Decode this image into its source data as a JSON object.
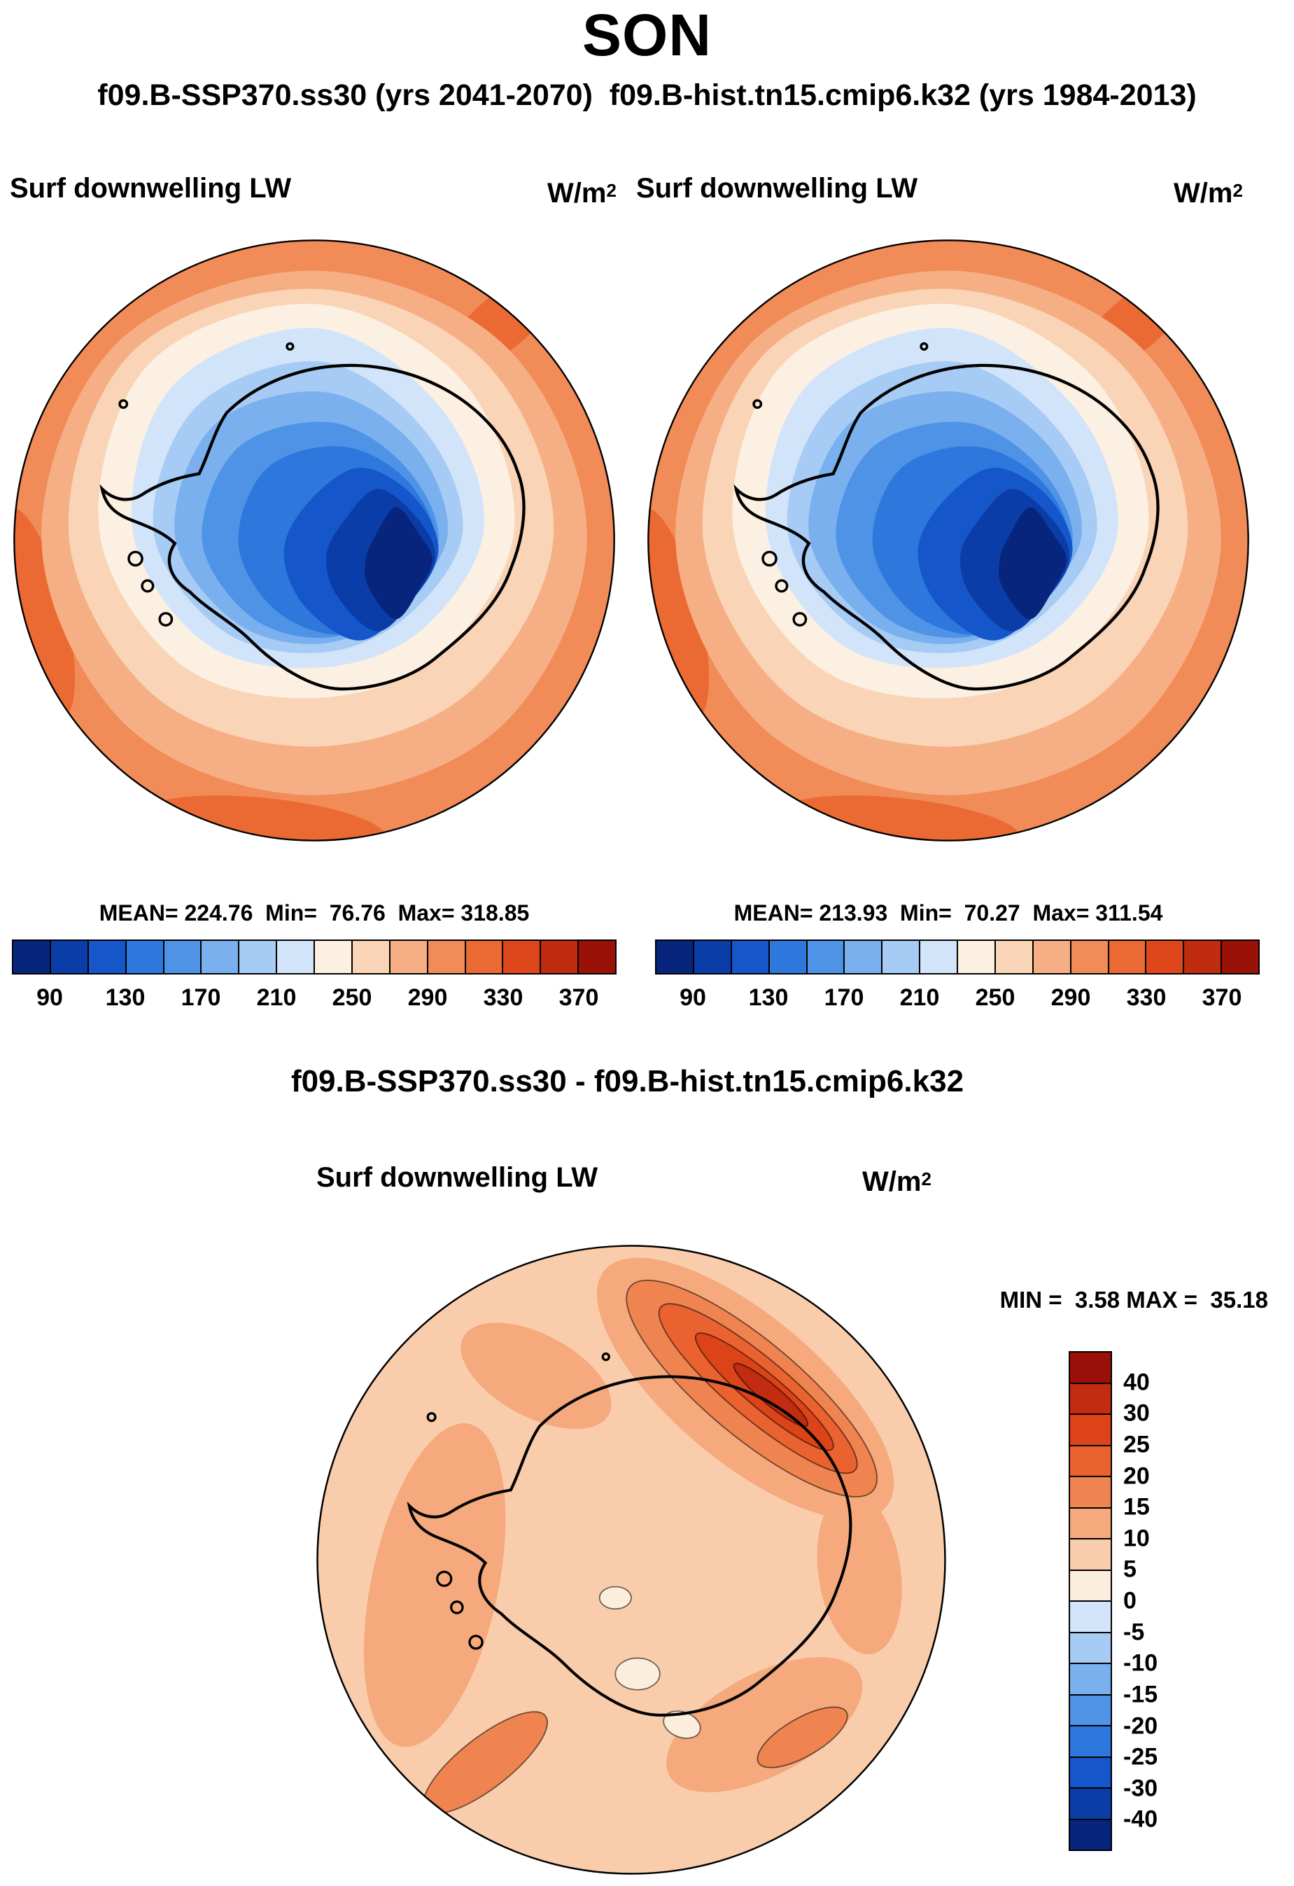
{
  "figure": {
    "season_title": "SON",
    "subtitle": "f09.B-SSP370.ss30 (yrs 2041-2070)  f09.B-hist.tn15.cmip6.k32 (yrs 1984-2013)",
    "diff_title": "f09.B-SSP370.ss30 - f09.B-hist.tn15.cmip6.k32",
    "field_label": "Surf downwelling LW",
    "units_base": "W/m",
    "units_exp": "2"
  },
  "panels": {
    "left": {
      "stats_text": "MEAN= 224.76  Min=  76.76  Max= 318.85"
    },
    "right": {
      "stats_text": "MEAN= 213.93  Min=  70.27  Max= 311.54"
    },
    "diff": {
      "minmax_text": "MIN =  3.58 MAX =  35.18"
    }
  },
  "chart_data": [
    {
      "type": "heatmap",
      "subtype": "filled-contour-map",
      "projection": "south polar stereographic",
      "panel": "top-left",
      "variable": "Surf downwelling LW",
      "units": "W/m2",
      "dataset": "f09.B-SSP370.ss30",
      "years": "yrs 2041-2070",
      "stats": {
        "mean": 224.76,
        "min": 76.76,
        "max": 318.85
      },
      "contour_levels": [
        90,
        110,
        130,
        150,
        170,
        190,
        210,
        230,
        250,
        270,
        290,
        310,
        330,
        350,
        370
      ],
      "colorbar_ticks": [
        90,
        130,
        170,
        210,
        250,
        290,
        330,
        370
      ],
      "colorbar_range": [
        70,
        390
      ],
      "legend_position": "bottom",
      "palette": [
        "#08257D",
        "#0B3DA8",
        "#1557CB",
        "#2E77DC",
        "#4E93E6",
        "#7AB0EE",
        "#A6CBF4",
        "#D2E4F9",
        "#FCF0E2",
        "#FAD4B6",
        "#F6AF85",
        "#F18B58",
        "#EB6A33",
        "#DE471B",
        "#C02C0F",
        "#991107"
      ],
      "pattern_summary": "High values (~290-310 W/m2) over the surrounding Southern Ocean decreasing inward to a minimum (70-90 W/m2) over the interior East Antarctic plateau; Antarctic coastline overlaid in black"
    },
    {
      "type": "heatmap",
      "subtype": "filled-contour-map",
      "projection": "south polar stereographic",
      "panel": "top-right",
      "variable": "Surf downwelling LW",
      "units": "W/m2",
      "dataset": "f09.B-hist.tn15.cmip6.k32",
      "years": "yrs 1984-2013",
      "stats": {
        "mean": 213.93,
        "min": 70.27,
        "max": 311.54
      },
      "contour_levels": [
        90,
        110,
        130,
        150,
        170,
        190,
        210,
        230,
        250,
        270,
        290,
        310,
        330,
        350,
        370
      ],
      "colorbar_ticks": [
        90,
        130,
        170,
        210,
        250,
        290,
        330,
        370
      ],
      "colorbar_range": [
        70,
        390
      ],
      "legend_position": "bottom",
      "palette": [
        "#08257D",
        "#0B3DA8",
        "#1557CB",
        "#2E77DC",
        "#4E93E6",
        "#7AB0EE",
        "#A6CBF4",
        "#D2E4F9",
        "#FCF0E2",
        "#FAD4B6",
        "#F6AF85",
        "#F18B58",
        "#EB6A33",
        "#DE471B",
        "#C02C0F",
        "#991107"
      ],
      "pattern_summary": "Same spatial pattern as the scenario panel but slightly lower values overall; minimum over the East Antarctic plateau, maximum over the open ocean"
    },
    {
      "type": "heatmap",
      "subtype": "filled-contour-difference-map",
      "projection": "south polar stereographic",
      "panel": "bottom-difference",
      "title": "f09.B-SSP370.ss30 - f09.B-hist.tn15.cmip6.k32",
      "variable": "Surf downwelling LW",
      "units": "W/m2",
      "stats": {
        "min": 3.58,
        "max": 35.18
      },
      "contour_levels": [
        -40,
        -30,
        -25,
        -20,
        -15,
        -10,
        -5,
        0,
        5,
        10,
        15,
        20,
        25,
        30,
        40
      ],
      "legend_position": "right",
      "palette": [
        "#08257D",
        "#0B3DA8",
        "#1557CB",
        "#2E77DC",
        "#4E93E6",
        "#7AB0EE",
        "#A6CBF4",
        "#D2E4F9",
        "#FCEEDD",
        "#F9CDAC",
        "#F5A97C",
        "#F08450",
        "#EA6230",
        "#DC4318",
        "#C22C10",
        "#9A1008"
      ],
      "pattern_summary": "Everywhere positive difference, mostly 5-15 W/m2; strongest increase (25-40 W/m2) in an elongated band over the sea-ice edge in the upper-right (Atlantic/Indian) sector; Antarctic coastline overlaid"
    }
  ]
}
